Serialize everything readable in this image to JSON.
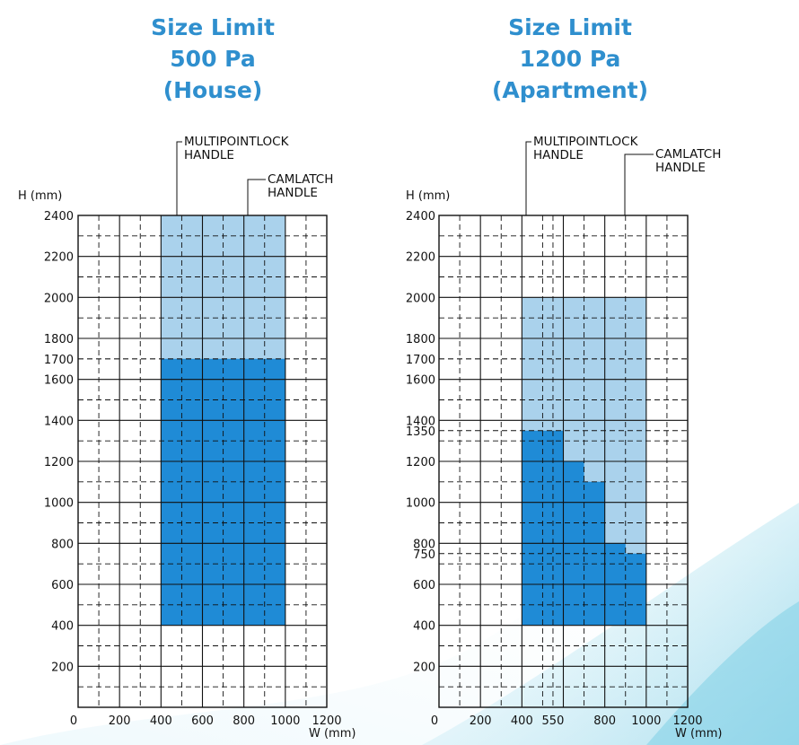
{
  "colors": {
    "title": "#2f8fce",
    "region_light": "#aad2ec",
    "region_dark": "#1f8bd6",
    "grid": "#111111"
  },
  "chart_data": [
    {
      "type": "area",
      "title_lines": [
        "Size Limit",
        "500 Pa",
        "(House)"
      ],
      "xlabel": "W (mm)",
      "ylabel": "H (mm)",
      "xlim": [
        0,
        1200
      ],
      "ylim": [
        0,
        2400
      ],
      "x_ticks": [
        "0",
        "200",
        "400",
        "600",
        "800",
        "1000",
        "1200"
      ],
      "y_ticks": [
        "200",
        "400",
        "600",
        "800",
        "1000",
        "1200",
        "1400",
        "1600",
        "1700",
        "1800",
        "2000",
        "2200",
        "2400"
      ],
      "grid": true,
      "series": [
        {
          "name": "MULTIPOINTLOCK HANDLE",
          "label_lines": [
            "MULTIPOINTLOCK",
            "HANDLE"
          ],
          "shade": "light",
          "polygon": [
            [
              400,
              400
            ],
            [
              1000,
              400
            ],
            [
              1000,
              2400
            ],
            [
              400,
              2400
            ]
          ]
        },
        {
          "name": "CAMLATCH HANDLE",
          "label_lines": [
            "CAMLATCH",
            "HANDLE"
          ],
          "shade": "dark",
          "polygon": [
            [
              400,
              400
            ],
            [
              1000,
              400
            ],
            [
              1000,
              1700
            ],
            [
              400,
              1700
            ]
          ]
        }
      ]
    },
    {
      "type": "area",
      "title_lines": [
        "Size Limit",
        "1200 Pa",
        "(Apartment)"
      ],
      "xlabel": "W (mm)",
      "ylabel": "H (mm)",
      "xlim": [
        0,
        1200
      ],
      "ylim": [
        0,
        2400
      ],
      "x_ticks": [
        "0",
        "200",
        "400",
        "550",
        "800",
        "1000",
        "1200"
      ],
      "y_ticks": [
        "200",
        "400",
        "600",
        "750",
        "800",
        "1000",
        "1200",
        "1350",
        "1400",
        "1600",
        "1700",
        "1800",
        "2000",
        "2200",
        "2400"
      ],
      "grid": true,
      "series": [
        {
          "name": "MULTIPOINTLOCK HANDLE",
          "label_lines": [
            "MULTIPOINTLOCK",
            "HANDLE"
          ],
          "shade": "light",
          "polygon": [
            [
              400,
              400
            ],
            [
              1000,
              400
            ],
            [
              1000,
              2000
            ],
            [
              400,
              2000
            ]
          ]
        },
        {
          "name": "CAMLATCH HANDLE",
          "label_lines": [
            "CAMLATCH",
            "HANDLE"
          ],
          "shade": "dark",
          "polygon": [
            [
              400,
              400
            ],
            [
              1000,
              400
            ],
            [
              1000,
              750
            ],
            [
              900,
              750
            ],
            [
              900,
              800
            ],
            [
              800,
              800
            ],
            [
              800,
              1100
            ],
            [
              700,
              1100
            ],
            [
              700,
              1200
            ],
            [
              600,
              1200
            ],
            [
              600,
              1350
            ],
            [
              400,
              1350
            ]
          ]
        }
      ]
    }
  ]
}
